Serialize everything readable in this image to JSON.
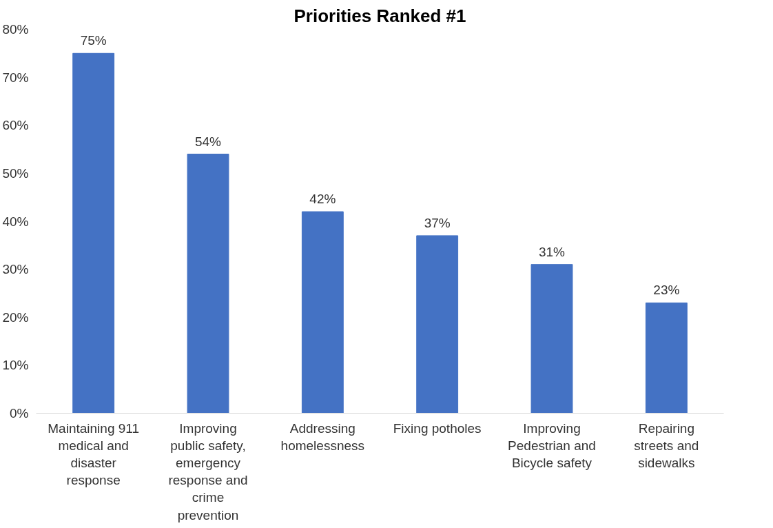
{
  "chart_data": {
    "type": "bar",
    "title": "Priorities Ranked #1",
    "categories": [
      "Maintaining 911 medical and disaster response",
      "Improving public safety, emergency response and crime prevention",
      "Addressing homelessness",
      "Fixing potholes",
      "Improving Pedestrian and Bicycle safety",
      "Repairing streets and sidewalks"
    ],
    "values": [
      75,
      54,
      42,
      37,
      31,
      23
    ],
    "value_labels": [
      "75%",
      "54%",
      "42%",
      "37%",
      "31%",
      "23%"
    ],
    "color": "#4472c4",
    "ylim": [
      0,
      80
    ],
    "yticks": [
      {
        "value": 0,
        "label": "0%"
      },
      {
        "value": 10,
        "label": "10%"
      },
      {
        "value": 20,
        "label": "20%"
      },
      {
        "value": 30,
        "label": "30%"
      },
      {
        "value": 40,
        "label": "40%"
      },
      {
        "value": 50,
        "label": "50%"
      },
      {
        "value": 60,
        "label": "60%"
      },
      {
        "value": 70,
        "label": "70%"
      },
      {
        "value": 80,
        "label": "80%"
      }
    ],
    "grid": false
  }
}
